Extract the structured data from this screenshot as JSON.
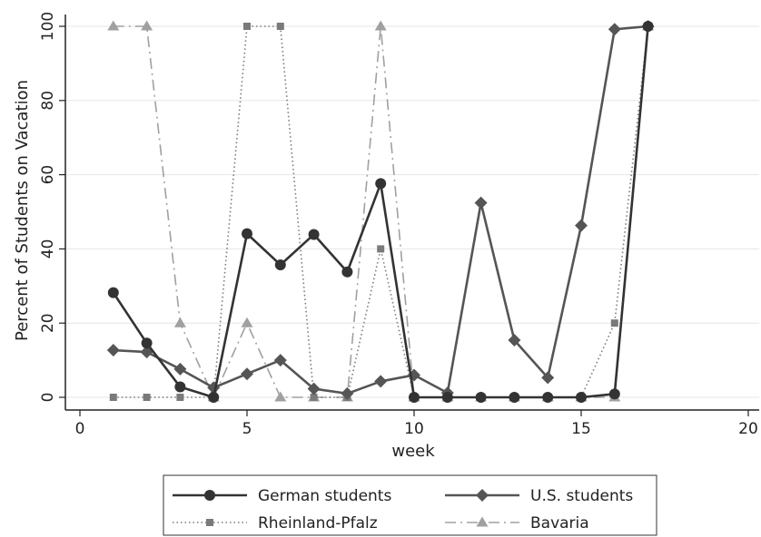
{
  "chart_data": {
    "type": "line",
    "title": "",
    "xlabel": "week",
    "ylabel": "Percent of Students on Vacation",
    "xlim": [
      0,
      20
    ],
    "ylim": [
      0,
      100
    ],
    "xticks": [
      0,
      5,
      10,
      15,
      20
    ],
    "yticks": [
      0,
      20,
      40,
      60,
      80,
      100
    ],
    "grid": "horizontal",
    "legend_position": "bottom",
    "x": [
      1,
      2,
      3,
      4,
      5,
      6,
      7,
      8,
      9,
      10,
      11,
      12,
      13,
      14,
      15,
      16,
      17
    ],
    "series": [
      {
        "name": "German students",
        "color": "#333333",
        "marker": "circle",
        "line": "solid",
        "values": [
          28.2,
          14.6,
          2.8,
          0,
          44.1,
          35.7,
          43.9,
          33.8,
          57.6,
          0,
          0,
          0,
          0,
          0,
          0,
          0.9,
          100
        ]
      },
      {
        "name": "U.S. students",
        "color": "#555555",
        "marker": "diamond",
        "line": "solid",
        "values": [
          12.7,
          12.2,
          7.6,
          2.6,
          6.3,
          10.0,
          2.3,
          1.0,
          4.3,
          6.0,
          1.2,
          52.4,
          15.4,
          5.3,
          46.3,
          99.2,
          100
        ]
      },
      {
        "name": "Rheinland-Pfalz",
        "color": "#7a7a7a",
        "marker": "square",
        "line": "dotted",
        "values": [
          0,
          0,
          0,
          0,
          100,
          100,
          0,
          0,
          40,
          0,
          0,
          0,
          0,
          0,
          0,
          20,
          100
        ]
      },
      {
        "name": "Bavaria",
        "color": "#a0a0a0",
        "marker": "triangle",
        "line": "dashdot",
        "values": [
          100,
          100,
          20,
          0,
          20,
          0,
          0,
          0,
          100,
          0,
          0,
          0,
          0,
          0,
          0,
          0,
          100
        ]
      }
    ]
  }
}
